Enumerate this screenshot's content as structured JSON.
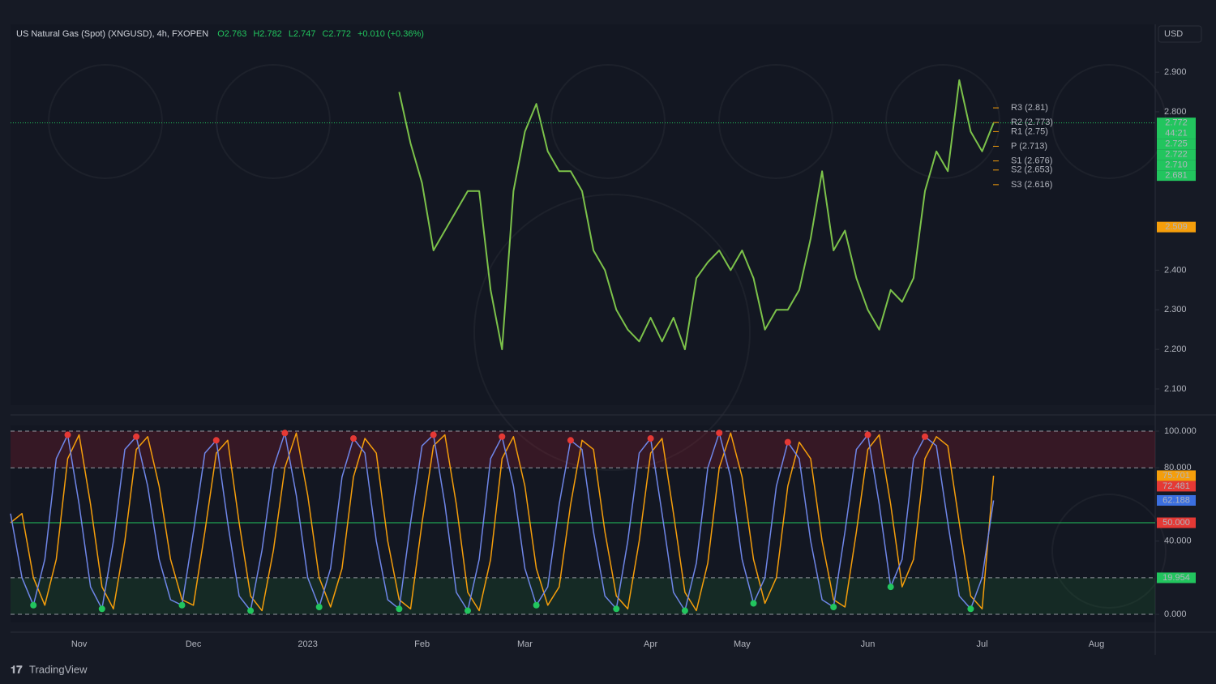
{
  "brand": "TradingView",
  "chart_data": [
    {
      "type": "line",
      "title": "US Natural Gas (Spot) (XNGUSD), 4h, FXOPEN",
      "ohlc": [
        "O2.763",
        "H2.782",
        "L2.747",
        "C2.772",
        "+0.010 (+0.36%)"
      ],
      "currency": "USD",
      "countdown": "44:21",
      "color": "#7cc24a",
      "values": [
        null,
        null,
        null,
        null,
        null,
        null,
        null,
        null,
        null,
        null,
        null,
        null,
        null,
        null,
        null,
        null,
        null,
        null,
        null,
        null,
        null,
        null,
        null,
        null,
        null,
        null,
        null,
        null,
        null,
        null,
        null,
        null,
        null,
        null,
        2.85,
        2.72,
        2.62,
        2.45,
        2.5,
        2.55,
        2.6,
        2.6,
        2.35,
        2.2,
        2.6,
        2.75,
        2.82,
        2.7,
        2.65,
        2.65,
        2.6,
        2.45,
        2.4,
        2.3,
        2.25,
        2.22,
        2.28,
        2.22,
        2.28,
        2.2,
        2.38,
        2.42,
        2.45,
        2.4,
        2.45,
        2.38,
        2.25,
        2.3,
        2.3,
        2.35,
        2.48,
        2.65,
        2.45,
        2.5,
        2.38,
        2.3,
        2.25,
        2.35,
        2.32,
        2.38,
        2.6,
        2.7,
        2.65,
        2.88,
        2.75,
        2.7,
        2.772,
        null,
        null,
        null,
        null,
        null,
        null,
        null,
        null,
        null,
        null,
        null,
        null,
        null,
        null
      ],
      "ylim": [
        2.059,
        3.021
      ],
      "yticks": [
        {
          "value": 2.1,
          "label": "2.100"
        },
        {
          "value": 2.2,
          "label": "2.200"
        },
        {
          "value": 2.3,
          "label": "2.300"
        },
        {
          "value": 2.4,
          "label": "2.400"
        },
        {
          "value": 2.8,
          "label": "2.800"
        },
        {
          "value": 2.9,
          "label": "2.900"
        }
      ],
      "pivots": [
        {
          "label": "R3 (2.81)",
          "value": 2.81
        },
        {
          "label": "R2 (2.773)",
          "value": 2.773
        },
        {
          "label": "R1 (2.75)",
          "value": 2.75
        },
        {
          "label": "P (2.713)",
          "value": 2.713
        },
        {
          "label": "S1 (2.676)",
          "value": 2.676
        },
        {
          "label": "S2 (2.653)",
          "value": 2.653
        },
        {
          "label": "S3 (2.616)",
          "value": 2.616
        }
      ],
      "price_tags": [
        {
          "value": 2.772,
          "label": "2.772",
          "color": "#22c55e"
        },
        {
          "value": 2.725,
          "label": "2.725",
          "color": "#22c55e"
        },
        {
          "value": 2.722,
          "label": "2.722",
          "color": "#22c55e"
        },
        {
          "value": 2.71,
          "label": "2.710",
          "color": "#22c55e"
        },
        {
          "value": 2.681,
          "label": "2.681",
          "color": "#22c55e"
        },
        {
          "value": 2.509,
          "label": "2.509",
          "color": "#f59e0b"
        }
      ]
    },
    {
      "type": "line",
      "categories": [
        null,
        null,
        null,
        null,
        null,
        null,
        "Nov",
        null,
        null,
        null,
        null,
        null,
        null,
        null,
        null,
        null,
        "Dec",
        null,
        null,
        null,
        null,
        null,
        null,
        null,
        null,
        null,
        "2023",
        null,
        null,
        null,
        null,
        null,
        null,
        null,
        null,
        null,
        "Feb",
        null,
        null,
        null,
        null,
        null,
        null,
        null,
        null,
        "Mar",
        null,
        null,
        null,
        null,
        null,
        null,
        null,
        null,
        null,
        null,
        "Apr",
        null,
        null,
        null,
        null,
        null,
        null,
        null,
        "May",
        null,
        null,
        null,
        null,
        null,
        null,
        null,
        null,
        null,
        null,
        "Jun",
        null,
        null,
        null,
        null,
        null,
        null,
        null,
        null,
        null,
        "Jul",
        null,
        null,
        null,
        null,
        null,
        null,
        null,
        null,
        null,
        "Aug",
        null,
        null,
        null,
        null,
        null
      ],
      "series": [
        {
          "color": "#f59e0b",
          "values": [
            50,
            55,
            20,
            5,
            30,
            85,
            98,
            60,
            15,
            3,
            40,
            90,
            97,
            70,
            30,
            8,
            5,
            45,
            88,
            95,
            50,
            10,
            2,
            35,
            80,
            99,
            65,
            20,
            4,
            25,
            75,
            96,
            88,
            40,
            8,
            3,
            50,
            92,
            98,
            60,
            12,
            2,
            30,
            85,
            97,
            70,
            25,
            5,
            15,
            60,
            95,
            90,
            45,
            10,
            3,
            40,
            88,
            96,
            55,
            12,
            2,
            28,
            80,
            99,
            75,
            30,
            6,
            20,
            70,
            94,
            85,
            40,
            8,
            4,
            45,
            90,
            98,
            60,
            15,
            30,
            85,
            97,
            92,
            50,
            10,
            3,
            75.701,
            null,
            null,
            null,
            null,
            null,
            null,
            null,
            null,
            null,
            null,
            null,
            null,
            null,
            null
          ]
        },
        {
          "color": "#6f86e8",
          "values": [
            55,
            20,
            5,
            30,
            85,
            98,
            60,
            15,
            3,
            40,
            90,
            97,
            70,
            30,
            8,
            5,
            45,
            88,
            95,
            50,
            10,
            2,
            35,
            80,
            99,
            65,
            20,
            4,
            25,
            75,
            96,
            88,
            40,
            8,
            3,
            50,
            92,
            98,
            60,
            12,
            2,
            30,
            85,
            97,
            70,
            25,
            5,
            15,
            60,
            95,
            90,
            45,
            10,
            3,
            40,
            88,
            96,
            55,
            12,
            2,
            28,
            80,
            99,
            75,
            30,
            6,
            20,
            70,
            94,
            85,
            40,
            8,
            4,
            45,
            90,
            98,
            60,
            15,
            30,
            85,
            97,
            92,
            50,
            10,
            3,
            20,
            62.188,
            null,
            null,
            null,
            null,
            null,
            null,
            null,
            null,
            null,
            null,
            null,
            null,
            null,
            null
          ]
        }
      ],
      "ylim": [
        -4.4,
        103.1
      ],
      "yticks": [
        {
          "value": 0,
          "label": "0.000"
        },
        {
          "value": 40,
          "label": "40.000"
        },
        {
          "value": 80,
          "label": "80.000"
        },
        {
          "value": 100,
          "label": "100.000"
        }
      ],
      "levels": [
        100,
        80,
        20,
        0
      ],
      "midline": 50,
      "value_tags": [
        {
          "value": 75.701,
          "label": "75.701",
          "color": "#f59e0b"
        },
        {
          "value": 72.481,
          "label": "72.481",
          "color": "#e53935"
        },
        {
          "value": 62.188,
          "label": "62.188",
          "color": "#3b6fe0"
        },
        {
          "value": 50,
          "label": "50.000",
          "color": "#e53935"
        },
        {
          "value": 19.954,
          "label": "19.954",
          "color": "#22c55e"
        }
      ]
    }
  ]
}
